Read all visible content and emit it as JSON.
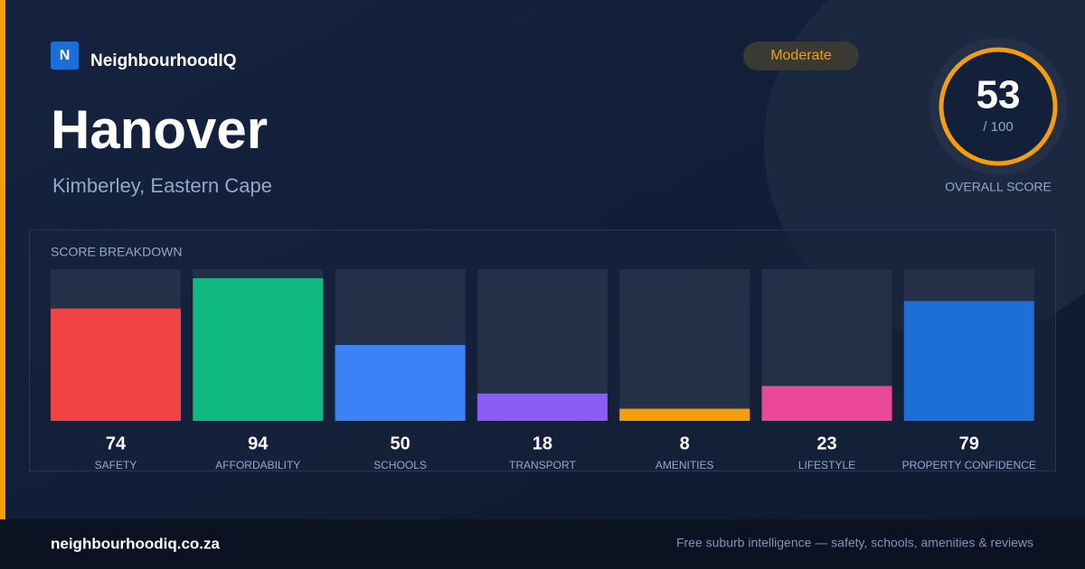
{
  "brand": {
    "logo": "N",
    "name": "NeighbourhoodIQ"
  },
  "badge": "Moderate",
  "suburb": "Hanover",
  "location": "Kimberley, Eastern Cape",
  "overall": {
    "score": "53",
    "out_of": "/ 100",
    "caption": "OVERALL SCORE"
  },
  "chart_data": {
    "type": "bar",
    "title": "SCORE BREAKDOWN",
    "categories": [
      "SAFETY",
      "AFFORDABILITY",
      "SCHOOLS",
      "TRANSPORT",
      "AMENITIES",
      "LIFESTYLE",
      "PROPERTY CONFIDENCE"
    ],
    "values": [
      74,
      94,
      50,
      18,
      8,
      23,
      79
    ],
    "colors": [
      "#ef4444",
      "#10b981",
      "#3b82f6",
      "#8b5cf6",
      "#f59e0b",
      "#ec4899",
      "#1d6fd8"
    ],
    "ylim": [
      0,
      100
    ]
  },
  "footer": {
    "url": "neighbourhoodiq.co.za",
    "tagline": "Free suburb intelligence — safety, schools, amenities & reviews"
  }
}
